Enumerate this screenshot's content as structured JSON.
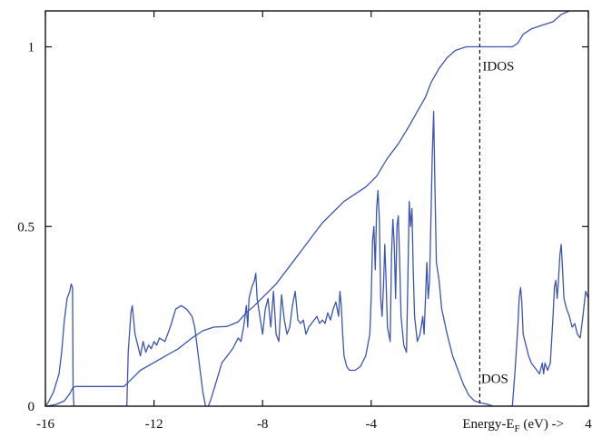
{
  "chart_data": {
    "type": "line",
    "title": "",
    "xlabel": "Energy-E",
    "xlabel_sub": "F",
    "xlabel_suffix": " (eV) ->",
    "ylabel": "",
    "xlim": [
      -16,
      4
    ],
    "ylim": [
      0,
      1.1
    ],
    "x_ticks": [
      {
        "value": -16,
        "label": "-16"
      },
      {
        "value": -12,
        "label": "-12"
      },
      {
        "value": -8,
        "label": "-8"
      },
      {
        "value": -4,
        "label": "-4"
      },
      {
        "value": 4,
        "label": "4"
      }
    ],
    "y_ticks": [
      {
        "value": 0,
        "label": "0"
      },
      {
        "value": 0.5,
        "label": "0.5"
      },
      {
        "value": 1,
        "label": "1"
      }
    ],
    "grid": false,
    "legend": "none",
    "fermi_level": 0,
    "series": [
      {
        "name": "IDOS",
        "color": "#3c55b0",
        "points": [
          [
            -15.95,
            0
          ],
          [
            -15.6,
            0.005
          ],
          [
            -15.3,
            0.015
          ],
          [
            -15.1,
            0.035
          ],
          [
            -15.0,
            0.05
          ],
          [
            -14.9,
            0.055
          ],
          [
            -13.1,
            0.055
          ],
          [
            -12.9,
            0.07
          ],
          [
            -12.5,
            0.1
          ],
          [
            -11.8,
            0.13
          ],
          [
            -11.1,
            0.16
          ],
          [
            -10.6,
            0.19
          ],
          [
            -10.2,
            0.21
          ],
          [
            -9.8,
            0.22
          ],
          [
            -9.3,
            0.222
          ],
          [
            -8.9,
            0.235
          ],
          [
            -8.6,
            0.26
          ],
          [
            -8.3,
            0.28
          ],
          [
            -7.9,
            0.31
          ],
          [
            -7.5,
            0.34
          ],
          [
            -7.0,
            0.39
          ],
          [
            -6.6,
            0.43
          ],
          [
            -6.2,
            0.47
          ],
          [
            -5.8,
            0.51
          ],
          [
            -5.4,
            0.54
          ],
          [
            -5.0,
            0.57
          ],
          [
            -4.6,
            0.59
          ],
          [
            -4.2,
            0.61
          ],
          [
            -3.8,
            0.64
          ],
          [
            -3.4,
            0.69
          ],
          [
            -3.0,
            0.73
          ],
          [
            -2.6,
            0.78
          ],
          [
            -2.3,
            0.82
          ],
          [
            -2.0,
            0.86
          ],
          [
            -1.8,
            0.9
          ],
          [
            -1.5,
            0.94
          ],
          [
            -1.2,
            0.97
          ],
          [
            -0.9,
            0.99
          ],
          [
            -0.5,
            1.0
          ],
          [
            0,
            1.0
          ],
          [
            1.2,
            1.0
          ],
          [
            1.4,
            1.01
          ],
          [
            1.6,
            1.035
          ],
          [
            1.9,
            1.05
          ],
          [
            2.3,
            1.06
          ],
          [
            2.7,
            1.07
          ],
          [
            3.0,
            1.09
          ],
          [
            3.3,
            1.1
          ]
        ]
      },
      {
        "name": "DOS",
        "color": "#3c55b0",
        "points": [
          [
            -16,
            0
          ],
          [
            -15.9,
            0.01
          ],
          [
            -15.7,
            0.04
          ],
          [
            -15.5,
            0.09
          ],
          [
            -15.4,
            0.15
          ],
          [
            -15.3,
            0.24
          ],
          [
            -15.2,
            0.3
          ],
          [
            -15.1,
            0.32
          ],
          [
            -15.05,
            0.34
          ],
          [
            -15.0,
            0.33
          ],
          [
            -14.98,
            0.05
          ],
          [
            -14.95,
            0
          ],
          [
            -13.0,
            0
          ],
          [
            -12.95,
            0.15
          ],
          [
            -12.85,
            0.26
          ],
          [
            -12.8,
            0.28
          ],
          [
            -12.7,
            0.2
          ],
          [
            -12.6,
            0.17
          ],
          [
            -12.5,
            0.14
          ],
          [
            -12.4,
            0.18
          ],
          [
            -12.3,
            0.15
          ],
          [
            -12.2,
            0.17
          ],
          [
            -12.1,
            0.16
          ],
          [
            -12.0,
            0.18
          ],
          [
            -11.9,
            0.17
          ],
          [
            -11.8,
            0.19
          ],
          [
            -11.6,
            0.18
          ],
          [
            -11.4,
            0.22
          ],
          [
            -11.2,
            0.27
          ],
          [
            -11.0,
            0.28
          ],
          [
            -10.8,
            0.27
          ],
          [
            -10.6,
            0.25
          ],
          [
            -10.5,
            0.22
          ],
          [
            -10.4,
            0.16
          ],
          [
            -10.3,
            0.1
          ],
          [
            -10.2,
            0.04
          ],
          [
            -10.1,
            0.0
          ],
          [
            -10.0,
            0.0
          ],
          [
            -9.9,
            0.02
          ],
          [
            -9.7,
            0.07
          ],
          [
            -9.5,
            0.12
          ],
          [
            -9.3,
            0.14
          ],
          [
            -9.1,
            0.16
          ],
          [
            -8.9,
            0.19
          ],
          [
            -8.8,
            0.18
          ],
          [
            -8.7,
            0.22
          ],
          [
            -8.6,
            0.28
          ],
          [
            -8.55,
            0.22
          ],
          [
            -8.5,
            0.3
          ],
          [
            -8.4,
            0.33
          ],
          [
            -8.3,
            0.35
          ],
          [
            -8.25,
            0.37
          ],
          [
            -8.2,
            0.3
          ],
          [
            -8.1,
            0.25
          ],
          [
            -8.0,
            0.2
          ],
          [
            -7.9,
            0.27
          ],
          [
            -7.8,
            0.3
          ],
          [
            -7.7,
            0.22
          ],
          [
            -7.6,
            0.32
          ],
          [
            -7.5,
            0.2
          ],
          [
            -7.4,
            0.18
          ],
          [
            -7.3,
            0.31
          ],
          [
            -7.2,
            0.24
          ],
          [
            -7.1,
            0.2
          ],
          [
            -7.0,
            0.22
          ],
          [
            -6.9,
            0.28
          ],
          [
            -6.8,
            0.32
          ],
          [
            -6.7,
            0.24
          ],
          [
            -6.6,
            0.23
          ],
          [
            -6.5,
            0.24
          ],
          [
            -6.4,
            0.2
          ],
          [
            -6.3,
            0.22
          ],
          [
            -6.2,
            0.23
          ],
          [
            -6.0,
            0.25
          ],
          [
            -5.9,
            0.23
          ],
          [
            -5.8,
            0.24
          ],
          [
            -5.7,
            0.23
          ],
          [
            -5.6,
            0.26
          ],
          [
            -5.5,
            0.24
          ],
          [
            -5.4,
            0.27
          ],
          [
            -5.3,
            0.29
          ],
          [
            -5.2,
            0.25
          ],
          [
            -5.15,
            0.32
          ],
          [
            -5.1,
            0.28
          ],
          [
            -5.05,
            0.2
          ],
          [
            -5.0,
            0.14
          ],
          [
            -4.9,
            0.11
          ],
          [
            -4.8,
            0.1
          ],
          [
            -4.6,
            0.1
          ],
          [
            -4.4,
            0.11
          ],
          [
            -4.2,
            0.14
          ],
          [
            -4.05,
            0.2
          ],
          [
            -4.0,
            0.3
          ],
          [
            -3.95,
            0.46
          ],
          [
            -3.9,
            0.5
          ],
          [
            -3.85,
            0.38
          ],
          [
            -3.8,
            0.55
          ],
          [
            -3.75,
            0.6
          ],
          [
            -3.7,
            0.52
          ],
          [
            -3.65,
            0.3
          ],
          [
            -3.6,
            0.25
          ],
          [
            -3.55,
            0.33
          ],
          [
            -3.5,
            0.45
          ],
          [
            -3.45,
            0.35
          ],
          [
            -3.4,
            0.22
          ],
          [
            -3.3,
            0.18
          ],
          [
            -3.25,
            0.42
          ],
          [
            -3.2,
            0.52
          ],
          [
            -3.15,
            0.45
          ],
          [
            -3.1,
            0.3
          ],
          [
            -3.05,
            0.5
          ],
          [
            -3.0,
            0.53
          ],
          [
            -2.95,
            0.4
          ],
          [
            -2.9,
            0.25
          ],
          [
            -2.8,
            0.17
          ],
          [
            -2.7,
            0.15
          ],
          [
            -2.65,
            0.35
          ],
          [
            -2.6,
            0.57
          ],
          [
            -2.55,
            0.5
          ],
          [
            -2.5,
            0.55
          ],
          [
            -2.45,
            0.38
          ],
          [
            -2.4,
            0.25
          ],
          [
            -2.3,
            0.18
          ],
          [
            -2.2,
            0.2
          ],
          [
            -2.1,
            0.25
          ],
          [
            -2.05,
            0.2
          ],
          [
            -2.0,
            0.3
          ],
          [
            -1.95,
            0.4
          ],
          [
            -1.9,
            0.3
          ],
          [
            -1.85,
            0.35
          ],
          [
            -1.8,
            0.52
          ],
          [
            -1.75,
            0.7
          ],
          [
            -1.7,
            0.82
          ],
          [
            -1.65,
            0.6
          ],
          [
            -1.6,
            0.4
          ],
          [
            -1.5,
            0.35
          ],
          [
            -1.4,
            0.27
          ],
          [
            -1.2,
            0.2
          ],
          [
            -1.0,
            0.14
          ],
          [
            -0.8,
            0.1
          ],
          [
            -0.6,
            0.06
          ],
          [
            -0.4,
            0.03
          ],
          [
            -0.2,
            0.015
          ],
          [
            0.0,
            0.01
          ],
          [
            0.3,
            0.005
          ],
          [
            0.5,
            0
          ],
          [
            1.2,
            0
          ],
          [
            1.3,
            0.1
          ],
          [
            1.4,
            0.22
          ],
          [
            1.45,
            0.3
          ],
          [
            1.5,
            0.33
          ],
          [
            1.55,
            0.29
          ],
          [
            1.6,
            0.2
          ],
          [
            1.7,
            0.17
          ],
          [
            1.8,
            0.14
          ],
          [
            1.9,
            0.12
          ],
          [
            2.0,
            0.11
          ],
          [
            2.1,
            0.1
          ],
          [
            2.2,
            0.09
          ],
          [
            2.3,
            0.12
          ],
          [
            2.35,
            0.09
          ],
          [
            2.4,
            0.12
          ],
          [
            2.5,
            0.1
          ],
          [
            2.6,
            0.12
          ],
          [
            2.7,
            0.25
          ],
          [
            2.75,
            0.33
          ],
          [
            2.8,
            0.35
          ],
          [
            2.85,
            0.3
          ],
          [
            2.9,
            0.35
          ],
          [
            2.95,
            0.42
          ],
          [
            3.0,
            0.45
          ],
          [
            3.05,
            0.38
          ],
          [
            3.1,
            0.3
          ],
          [
            3.2,
            0.27
          ],
          [
            3.3,
            0.25
          ],
          [
            3.4,
            0.22
          ],
          [
            3.5,
            0.23
          ],
          [
            3.6,
            0.2
          ],
          [
            3.7,
            0.19
          ],
          [
            3.8,
            0.25
          ],
          [
            3.9,
            0.32
          ],
          [
            4.0,
            0.3
          ]
        ]
      }
    ],
    "annotations": [
      {
        "text": "IDOS",
        "x": 0.1,
        "y": 0.95
      },
      {
        "text": "DOS",
        "x": 0.05,
        "y": 0.08
      }
    ]
  }
}
